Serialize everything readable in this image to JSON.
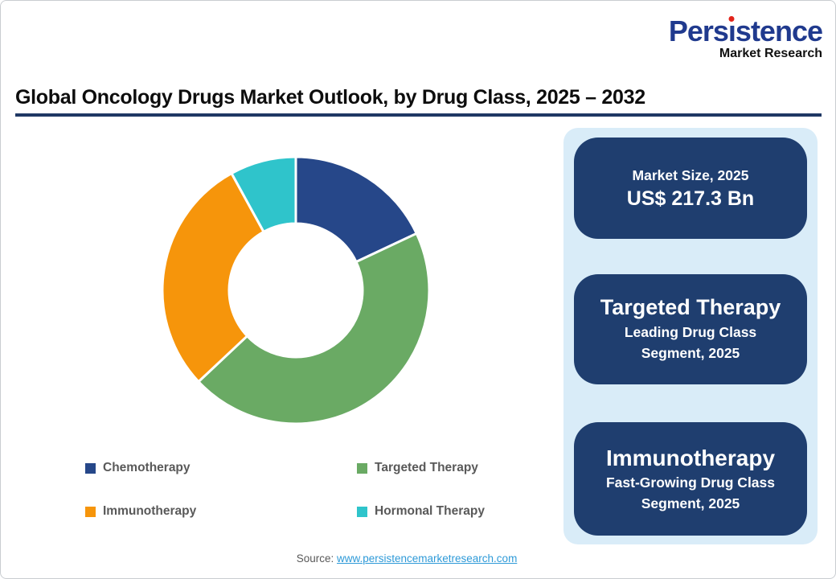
{
  "logo": {
    "part1": "Pers",
    "dotless_i": "ı",
    "part2": "stence",
    "subtitle": "Market Research",
    "brand_color": "#203a8e",
    "dot_color": "#e2231a"
  },
  "header": {
    "title": "Global Oncology Drugs Market Outlook, by Drug Class, 2025 – 2032",
    "underline_color": "#1f3864"
  },
  "chart_data": {
    "type": "pie",
    "donut": true,
    "inner_radius_ratio": 0.5,
    "start_angle_deg": 0,
    "direction": "clockwise",
    "title": "Global Oncology Drugs Market Outlook, by Drug Class, 2025 – 2032",
    "categories": [
      "Chemotherapy",
      "Targeted Therapy",
      "Immunotherapy",
      "Hormonal Therapy"
    ],
    "values_pct": [
      18,
      45,
      29,
      8
    ],
    "colors": [
      "#264789",
      "#6aaa64",
      "#f6950b",
      "#2fc4cb"
    ],
    "legend_position": "bottom",
    "legend_text_color": "#595959",
    "segment_separator_color": "#ffffff"
  },
  "sidebar": {
    "background": "#d9ecf8",
    "card_color": "#1f3e6f",
    "cards": [
      {
        "line1": "Market Size, 2025",
        "line2": "US$ 217.3 Bn"
      },
      {
        "line1": "Targeted Therapy",
        "line2": "Leading Drug Class",
        "line3": "Segment, 2025"
      },
      {
        "line1": "Immunotherapy",
        "line2": "Fast-Growing Drug Class",
        "line3": "Segment, 2025"
      }
    ]
  },
  "footer": {
    "source_label": "Source:",
    "source_link": "www.persistencemarketresearch.com",
    "link_color": "#2e9ad8"
  }
}
